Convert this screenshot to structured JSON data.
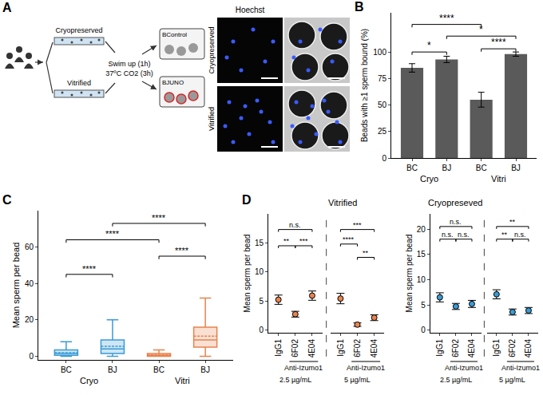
{
  "diagram": {
    "panel": "A",
    "cryo_label": "Cryopreserved",
    "vitri_label": "Vitrified",
    "step_labels": [
      "Swim up (1h)",
      "37ºC CO2 (3h)"
    ],
    "control_label": "BControl",
    "juno_label": "BJUNO",
    "stain_label": "Hoechst",
    "image_rows": [
      "Cryopreserved",
      "Vitrified"
    ]
  },
  "chart_data": [
    {
      "panel": "B",
      "type": "bar",
      "categories": [
        "BC",
        "BJ",
        "BC",
        "BJ"
      ],
      "groups": [
        {
          "label": "Cryo",
          "members": [
            0,
            1
          ]
        },
        {
          "label": "Vitri",
          "members": [
            2,
            3
          ]
        }
      ],
      "values": [
        85,
        93,
        55,
        98
      ],
      "errors": [
        4,
        3,
        7,
        2
      ],
      "color": "#5a5a5a",
      "y_label": "Beads with ≥1 sperm bound (%)",
      "ylim": [
        0,
        137
      ],
      "yticks": [
        0,
        25,
        50,
        75,
        100
      ],
      "comparisons": [
        {
          "from": 0,
          "to": 1,
          "y": 100,
          "label": "*"
        },
        {
          "from": 2,
          "to": 3,
          "y": 103,
          "label": "****"
        },
        {
          "from": 1,
          "to": 3,
          "y": 115,
          "label": "*"
        },
        {
          "from": 0,
          "to": 2,
          "y": 126,
          "label": "****"
        }
      ]
    },
    {
      "panel": "C",
      "type": "box",
      "categories": [
        "BC",
        "BJ",
        "BC",
        "BJ"
      ],
      "groups": [
        {
          "label": "Cryo",
          "members": [
            0,
            1
          ]
        },
        {
          "label": "Vitri",
          "members": [
            2,
            3
          ]
        }
      ],
      "colors": [
        "#3a9bd5",
        "#3a9bd5",
        "#e8834f",
        "#e8834f"
      ],
      "q1": [
        0.5,
        1.5,
        0,
        5
      ],
      "median": [
        1.5,
        4,
        0.5,
        9
      ],
      "q3": [
        3.5,
        9,
        1.5,
        16
      ],
      "lowerfence": [
        0,
        0,
        0,
        0
      ],
      "upperfence": [
        8,
        20,
        3.5,
        32
      ],
      "mean": [
        2,
        5.5,
        0.7,
        11
      ],
      "y_label": "Mean sperm per bead",
      "ylim": [
        -2,
        80
      ],
      "yticks": [
        0,
        20,
        40,
        60
      ],
      "comparisons": [
        {
          "from": 0,
          "to": 1,
          "y": 45,
          "label": "****"
        },
        {
          "from": 2,
          "to": 3,
          "y": 55,
          "label": "****"
        },
        {
          "from": 0,
          "to": 2,
          "y": 64,
          "label": "****"
        },
        {
          "from": 1,
          "to": 3,
          "y": 73,
          "label": "****"
        }
      ]
    },
    {
      "panel": "D",
      "type": "scatter",
      "categories": [
        "IgG1",
        "6F02",
        "4E04"
      ],
      "bracket_label": "Anti-Izumo1",
      "y_label": "Mean sperm per bead",
      "subpanels": [
        {
          "title": "Vitrified",
          "color": "#e8834f",
          "ylim": [
            -0.5,
            20
          ],
          "yticks": [
            0,
            5,
            10,
            15
          ],
          "groups": [
            {
              "label": "2.5 µg/mL",
              "values": [
                5.2,
                2.7,
                5.9
              ],
              "errors": [
                0.8,
                0.5,
                0.8
              ],
              "comparisons": [
                {
                  "from": 0,
                  "to": 1,
                  "y": 14.5,
                  "label": "**"
                },
                {
                  "from": 1,
                  "to": 2,
                  "y": 14.5,
                  "label": "***"
                },
                {
                  "from": 0,
                  "to": 2,
                  "y": 17.3,
                  "label": "n.s."
                }
              ]
            },
            {
              "label": "5 µg/mL",
              "values": [
                5.4,
                0.9,
                2.1
              ],
              "errors": [
                0.9,
                0.3,
                0.5
              ],
              "comparisons": [
                {
                  "from": 1,
                  "to": 2,
                  "y": 12.5,
                  "label": "**"
                },
                {
                  "from": 0,
                  "to": 1,
                  "y": 14.8,
                  "label": "****"
                },
                {
                  "from": 0,
                  "to": 2,
                  "y": 17.3,
                  "label": "***"
                }
              ]
            }
          ]
        },
        {
          "title": "Cryopreseved",
          "color": "#3a9bd5",
          "ylim": [
            -0.5,
            23
          ],
          "yticks": [
            0,
            5,
            10,
            15,
            20
          ],
          "groups": [
            {
              "label": "2.5 µg/mL",
              "values": [
                6.5,
                4.7,
                5.2
              ],
              "errors": [
                0.9,
                0.6,
                0.7
              ],
              "comparisons": [
                {
                  "from": 0,
                  "to": 1,
                  "y": 18,
                  "label": "n.s."
                },
                {
                  "from": 1,
                  "to": 2,
                  "y": 18,
                  "label": "n.s."
                },
                {
                  "from": 0,
                  "to": 2,
                  "y": 20.5,
                  "label": "n.s."
                }
              ]
            },
            {
              "label": "5 µg/mL",
              "values": [
                7.1,
                3.6,
                3.9
              ],
              "errors": [
                0.9,
                0.6,
                0.6
              ],
              "comparisons": [
                {
                  "from": 0,
                  "to": 1,
                  "y": 18,
                  "label": "**"
                },
                {
                  "from": 1,
                  "to": 2,
                  "y": 18,
                  "label": "n.s."
                },
                {
                  "from": 0,
                  "to": 2,
                  "y": 20.5,
                  "label": "**"
                }
              ]
            }
          ]
        }
      ]
    }
  ]
}
